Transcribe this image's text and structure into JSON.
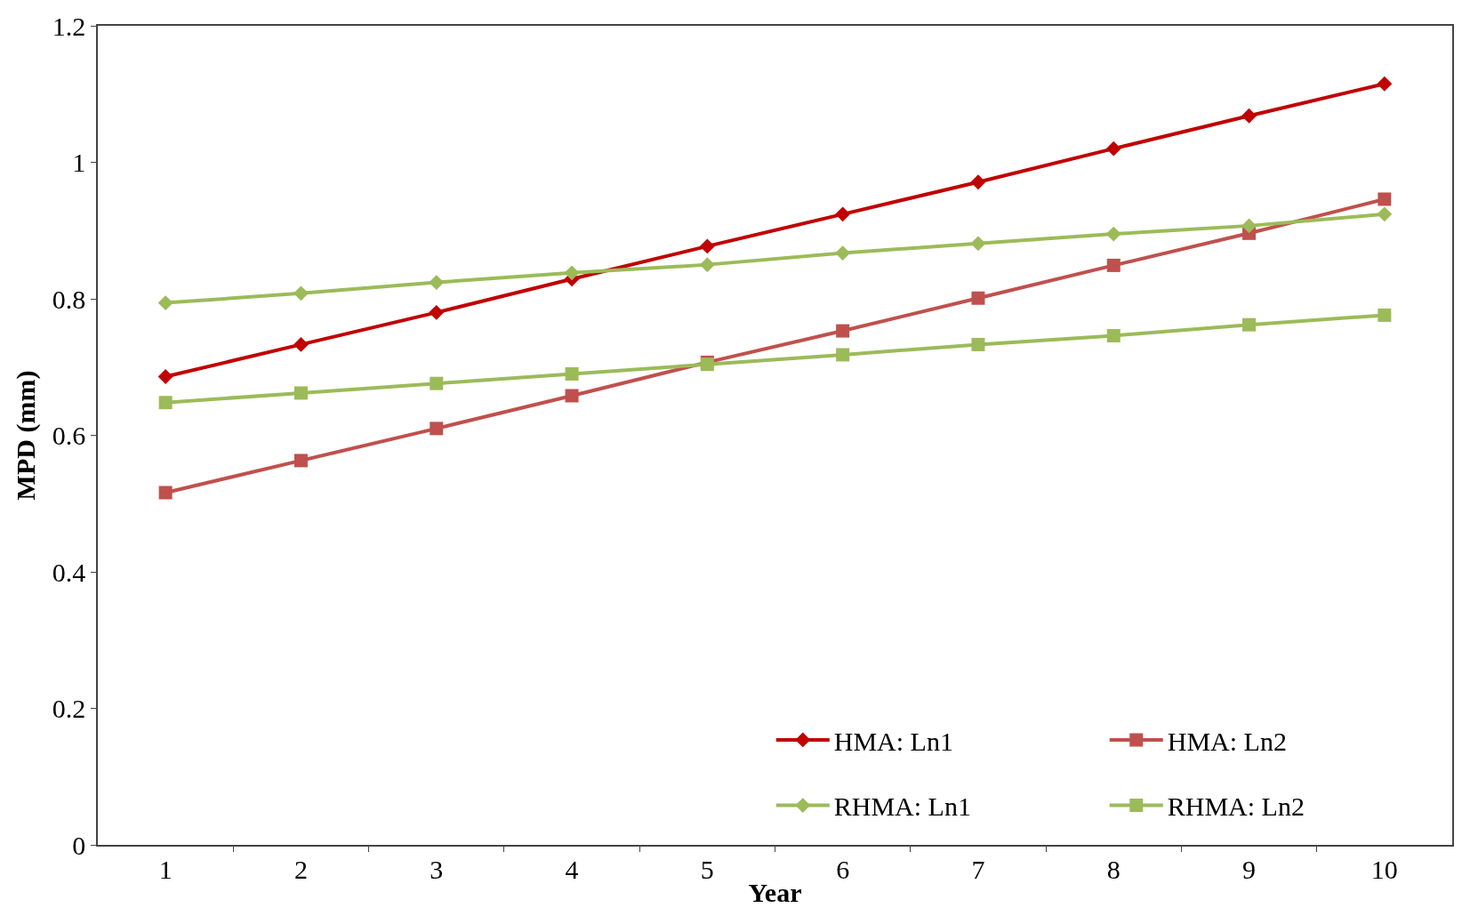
{
  "chart_data": {
    "type": "line",
    "xlabel": "Year",
    "ylabel": "MPD (mm)",
    "categories": [
      "1",
      "2",
      "3",
      "4",
      "5",
      "6",
      "7",
      "8",
      "9",
      "10"
    ],
    "series": [
      {
        "name": "HMA: Ln1",
        "color": "#c00000",
        "marker": "diamond",
        "values": [
          0.686,
          0.733,
          0.78,
          0.829,
          0.877,
          0.924,
          0.971,
          1.02,
          1.068,
          1.115
        ]
      },
      {
        "name": "HMA: Ln2",
        "color": "#c0504d",
        "marker": "square",
        "values": [
          0.516,
          0.563,
          0.61,
          0.658,
          0.707,
          0.753,
          0.801,
          0.849,
          0.896,
          0.946
        ]
      },
      {
        "name": "RHMA: Ln1",
        "color": "#9bbb59",
        "marker": "diamond",
        "values": [
          0.794,
          0.808,
          0.824,
          0.838,
          0.85,
          0.867,
          0.881,
          0.895,
          0.907,
          0.924
        ]
      },
      {
        "name": "RHMA: Ln2",
        "color": "#9bbb59",
        "marker": "square",
        "values": [
          0.648,
          0.662,
          0.676,
          0.69,
          0.704,
          0.718,
          0.733,
          0.746,
          0.762,
          0.776
        ]
      }
    ],
    "ylim": [
      0,
      1.2
    ],
    "yticks": [
      0,
      0.2,
      0.4,
      0.6,
      0.8,
      1,
      1.2
    ],
    "legend": "bottom right",
    "line_style": "solid"
  }
}
